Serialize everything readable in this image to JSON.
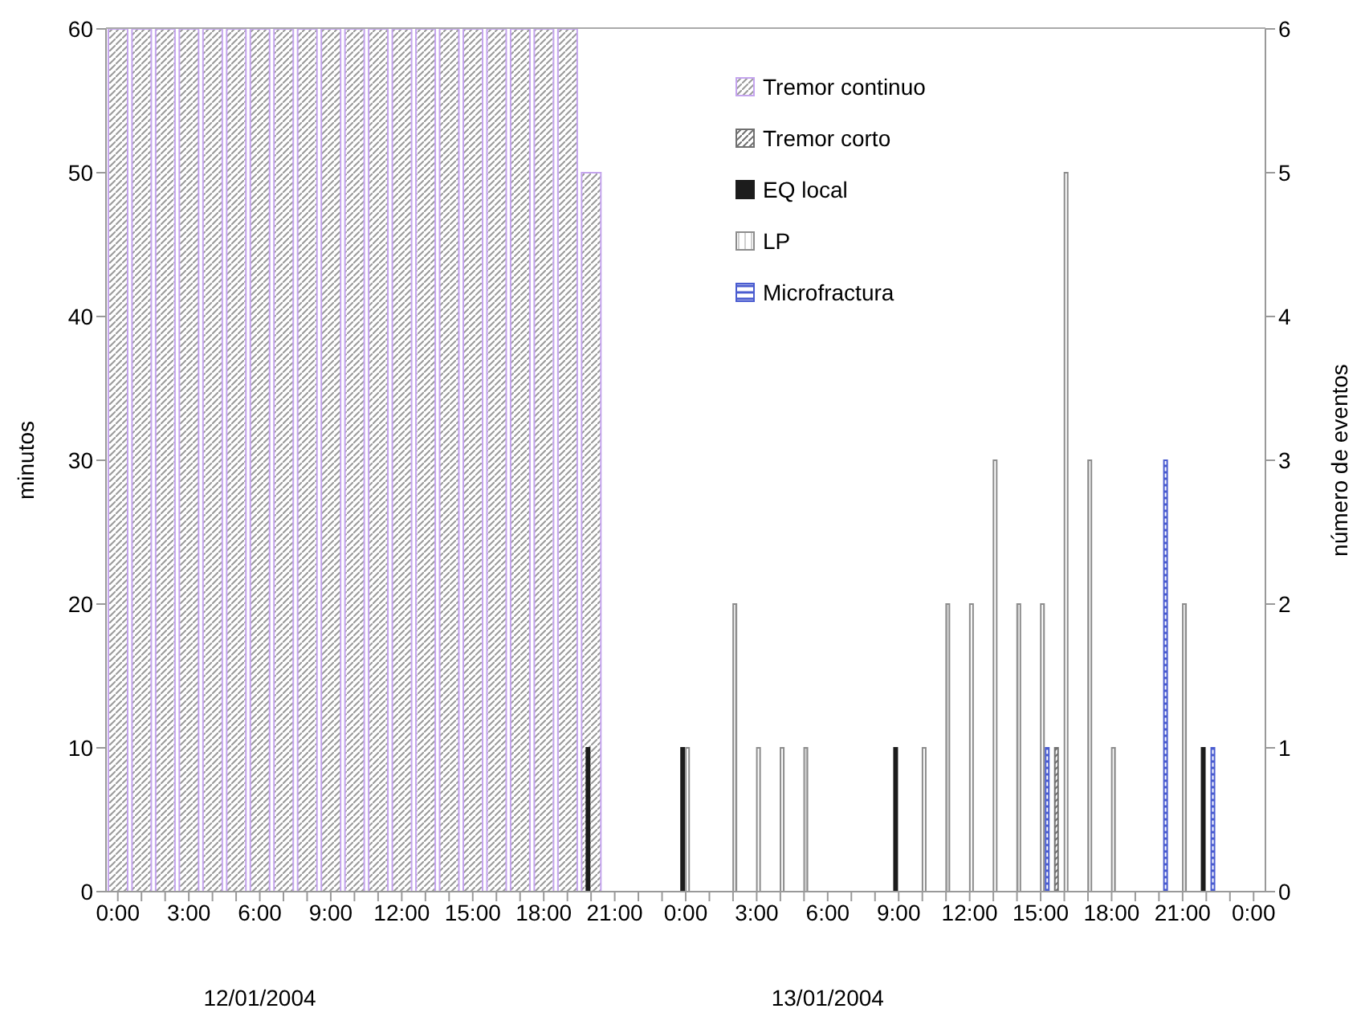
{
  "chart_data": {
    "type": "bar",
    "ylabel": "minutos",
    "y2label": "número de eventos",
    "categories": [
      "0:00",
      null,
      null,
      "3:00",
      null,
      null,
      "6:00",
      null,
      null,
      "9:00",
      null,
      null,
      "12:00",
      null,
      null,
      "15:00",
      null,
      null,
      "18:00",
      null,
      null,
      "21:00",
      null,
      null,
      "0:00",
      null,
      null,
      "3:00",
      null,
      null,
      "6:00",
      null,
      null,
      "9:00",
      null,
      null,
      "12:00",
      null,
      null,
      "15:00",
      null,
      null,
      "18:00",
      null,
      null,
      "21:00",
      null,
      null,
      "0:00"
    ],
    "series": [
      {
        "name": "Tremor continuo",
        "color": "#c4a4ee",
        "values": [
          60,
          60,
          60,
          60,
          60,
          60,
          60,
          60,
          60,
          60,
          60,
          60,
          60,
          60,
          60,
          60,
          60,
          60,
          60,
          60,
          50,
          null,
          null,
          null,
          null,
          null,
          null,
          null,
          null,
          null,
          null,
          null,
          null,
          null,
          null,
          null,
          null,
          null,
          null,
          null,
          null,
          null,
          null,
          null,
          null,
          null,
          null,
          null,
          null
        ]
      },
      {
        "name": "Tremor corto",
        "color": "#707070",
        "axis": "y2",
        "values": [
          null,
          null,
          null,
          null,
          null,
          null,
          null,
          null,
          null,
          null,
          null,
          null,
          null,
          null,
          null,
          null,
          null,
          null,
          null,
          null,
          null,
          null,
          null,
          null,
          null,
          null,
          null,
          null,
          null,
          null,
          null,
          null,
          null,
          null,
          null,
          null,
          null,
          null,
          null,
          null,
          1,
          null,
          null,
          null,
          null,
          null,
          null,
          null,
          null
        ]
      },
      {
        "name": "EQ local",
        "color": "#1c1c1c",
        "axis": "y2",
        "values": [
          null,
          null,
          null,
          null,
          null,
          null,
          null,
          null,
          null,
          null,
          null,
          null,
          null,
          null,
          null,
          null,
          null,
          null,
          null,
          null,
          1,
          null,
          null,
          null,
          1,
          null,
          null,
          null,
          null,
          null,
          null,
          null,
          null,
          1,
          null,
          null,
          null,
          null,
          null,
          null,
          null,
          null,
          null,
          null,
          null,
          null,
          1,
          null,
          null
        ]
      },
      {
        "name": "LP",
        "color": "#8c8c8c",
        "axis": "y2",
        "values": [
          null,
          null,
          null,
          null,
          null,
          null,
          null,
          null,
          null,
          null,
          null,
          null,
          null,
          null,
          null,
          null,
          null,
          null,
          null,
          null,
          null,
          null,
          null,
          null,
          1,
          null,
          2,
          1,
          1,
          1,
          null,
          null,
          null,
          null,
          1,
          2,
          2,
          3,
          2,
          2,
          5,
          3,
          1,
          null,
          null,
          2,
          null,
          null,
          null
        ]
      },
      {
        "name": "Microfractura",
        "color": "#4a5cd0",
        "axis": "y2",
        "values": [
          null,
          null,
          null,
          null,
          null,
          null,
          null,
          null,
          null,
          null,
          null,
          null,
          null,
          null,
          null,
          null,
          null,
          null,
          null,
          null,
          null,
          null,
          null,
          null,
          null,
          null,
          null,
          null,
          null,
          null,
          null,
          null,
          null,
          null,
          null,
          null,
          null,
          null,
          null,
          1,
          null,
          null,
          null,
          null,
          3,
          null,
          1,
          null,
          null
        ]
      }
    ],
    "ylim": [
      0,
      60
    ],
    "yticks": [
      0,
      10,
      20,
      30,
      40,
      50,
      60
    ],
    "y2lim": [
      0,
      6
    ],
    "y2ticks": [
      0,
      1,
      2,
      3,
      4,
      5,
      6
    ],
    "annotations": [
      "12/01/2004",
      "13/01/2004"
    ],
    "legend": "top right"
  }
}
